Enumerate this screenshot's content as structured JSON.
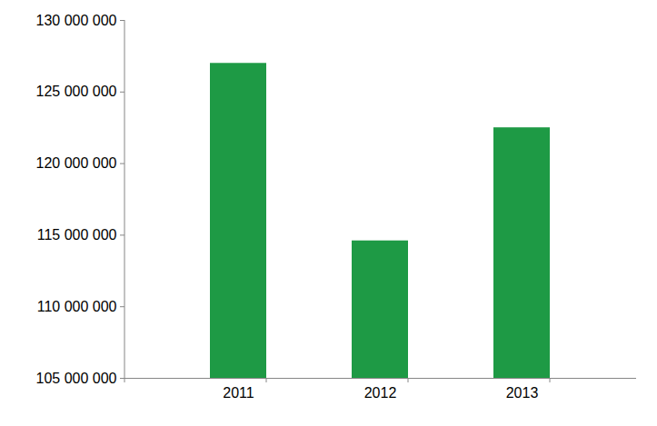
{
  "chart_data": {
    "type": "bar",
    "categories": [
      "2011",
      "2012",
      "2013"
    ],
    "values": [
      127000000,
      114600000,
      122500000
    ],
    "color": "#1e9a45",
    "ylim": [
      105000000,
      130000000
    ],
    "yticks": [
      {
        "value": 105000000,
        "label": "105 000 000"
      },
      {
        "value": 110000000,
        "label": "110 000 000"
      },
      {
        "value": 115000000,
        "label": "115 000 000"
      },
      {
        "value": 120000000,
        "label": "120 000 000"
      },
      {
        "value": 125000000,
        "label": "125 000 000"
      },
      {
        "value": 130000000,
        "label": "130 000 000"
      }
    ],
    "grid": false
  }
}
